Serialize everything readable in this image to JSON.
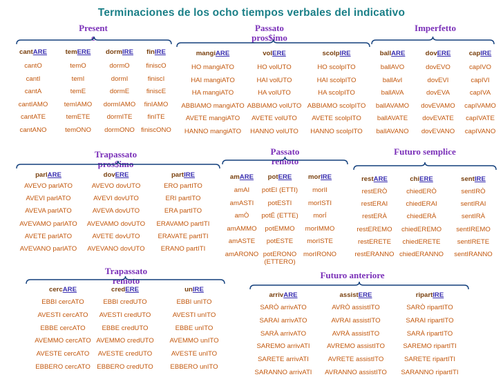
{
  "title": "Terminaciones de los ocho tiempos verbales del indicativo",
  "colors": {
    "title": "#1a7f87",
    "section": "#7a2fb8",
    "text": "#c2570c",
    "ending": "#3a2fb0",
    "brace": "#123f7c"
  },
  "sections": [
    {
      "id": "presente",
      "title": "Present\ne",
      "headers": [
        {
          "stem": "cant",
          "end": "ARE"
        },
        {
          "stem": "tem",
          "end": "ERE"
        },
        {
          "stem": "dorm",
          "end": "IRE"
        },
        {
          "stem": "fin",
          "end": "IRE"
        }
      ],
      "rows": [
        [
          "cantO",
          "temO",
          "dormO",
          "finiscO"
        ],
        [
          "cantI",
          "temI",
          "dormI",
          "finiscI"
        ],
        [
          "cantA",
          "temE",
          "dormE",
          "finiscE"
        ],
        [
          "cantIAMO",
          "temIAMO",
          "dormIAMO",
          "finIAMO"
        ],
        [
          "cantATE",
          "temETE",
          "dormITE",
          "finITE"
        ],
        [
          "cantANO",
          "temONO",
          "dormONO",
          "finiscONO"
        ]
      ]
    },
    {
      "id": "passato-prossimo",
      "title": "Passato\npros$imo",
      "headers": [
        {
          "stem": "mangi",
          "end": "ARE"
        },
        {
          "stem": "vol",
          "end": "ERE"
        },
        {
          "stem": "scolp",
          "end": "IRE"
        }
      ],
      "rows": [
        [
          "HO mangiATO",
          "HO volUTO",
          "HO scolpITO"
        ],
        [
          "HAI mangiATO",
          "HAI volUTO",
          "HAI scolpITO"
        ],
        [
          "HA mangiATO",
          "HA volUTO",
          "HA scolpITO"
        ],
        [
          "ABBIAMO mangiATO",
          "ABBIAMO volUTO",
          "ABBIAMO scolpITO"
        ],
        [
          "AVETE mangiATO",
          "AVETE volUTO",
          "AVETE scolpITO"
        ],
        [
          "HANNO mangiATO",
          "HANNO volUTO",
          "HANNO scolpITO"
        ]
      ]
    },
    {
      "id": "imperfetto",
      "title": "Imperfetto",
      "headers": [
        {
          "stem": "ball",
          "end": "ARE"
        },
        {
          "stem": "dov",
          "end": "ERE"
        },
        {
          "stem": "cap",
          "end": "IRE"
        }
      ],
      "rows": [
        [
          "ballAVO",
          "dovEVO",
          "capIVO"
        ],
        [
          "ballAvI",
          "dovEVI",
          "capIVI"
        ],
        [
          "ballAVA",
          "dovEVA",
          "capIVA"
        ],
        [
          "ballAVAMO",
          "dovEVAMO",
          "capIVAMO"
        ],
        [
          "ballAVATE",
          "dovEVATE",
          "capIVATE"
        ],
        [
          "ballAVANO",
          "dovEVANO",
          "capIVANO"
        ]
      ]
    },
    {
      "id": "trapassato-prossimo",
      "title": "Trapassato\npros$imo",
      "headers": [
        {
          "stem": "parl",
          "end": "ARE"
        },
        {
          "stem": "dov",
          "end": "ERE"
        },
        {
          "stem": "part",
          "end": "IRE"
        }
      ],
      "rows": [
        [
          "AVEVO parlATO",
          "AVEVO dovUTO",
          "ERO partITO"
        ],
        [
          "AVEVI parlATO",
          "AVEVI dovUTO",
          "ERI partITO"
        ],
        [
          "AVEVA parlATO",
          "AVEVA dovUTO",
          "ERA partITO"
        ],
        [
          "AVEVAMO parlATO",
          "AVEVAMO dovUTO",
          "ERAVAMO partITI"
        ],
        [
          "AVETE parlATO",
          "AVETE dovUTO",
          "ERAVATE partITI"
        ],
        [
          "AVEVANO parlATO",
          "AVEVANO dovUTO",
          "ERANO partITI"
        ]
      ]
    },
    {
      "id": "passato-remoto",
      "title": "Passato\nremoto",
      "headers": [
        {
          "stem": "am",
          "end": "ARE"
        },
        {
          "stem": "pot",
          "end": "ERE"
        },
        {
          "stem": "mor",
          "end": "IRE"
        }
      ],
      "rows": [
        [
          "amAI",
          "potEI (ETTI)",
          "morII"
        ],
        [
          "amASTI",
          "potESTI",
          "morISTI"
        ],
        [
          "amÒ",
          "potÉ (ETTE)",
          "morÍ"
        ],
        [
          "amAMMO",
          "potEMMO",
          "morIMMO"
        ],
        [
          "amASTE",
          "potESTE",
          "morISTE"
        ],
        [
          "amARONO",
          "potERONO\n(ETTERO)",
          "morIRONO"
        ]
      ]
    },
    {
      "id": "futuro-semplice",
      "title": "Futuro semplice",
      "headers": [
        {
          "stem": "rest",
          "end": "ARE"
        },
        {
          "stem": "chi",
          "end": "ERE"
        },
        {
          "stem": "sent",
          "end": "IRE"
        }
      ],
      "rows": [
        [
          "restERÒ",
          "chiedERÒ",
          "sentIRÒ"
        ],
        [
          "restERAI",
          "chiedERAI",
          "sentIRAI"
        ],
        [
          "restERÀ",
          "chiedERÀ",
          "sentIRÀ"
        ],
        [
          "restEREMO",
          "chiedEREMO",
          "sentIREMO"
        ],
        [
          "restERETE",
          "chiedERETE",
          "sentIRETE"
        ],
        [
          "restERANNO",
          "chiedERANNO",
          "sentIRANNO"
        ]
      ]
    },
    {
      "id": "trapassato-remoto",
      "title": "Trapassato\nremoto",
      "headers": [
        {
          "stem": "cerc",
          "end": "ARE"
        },
        {
          "stem": "cred",
          "end": "ERE"
        },
        {
          "stem": "un",
          "end": "IRE"
        }
      ],
      "rows": [
        [
          "EBBI cercATO",
          "EBBI credUTO",
          "EBBI unITO"
        ],
        [
          "AVESTI cercATO",
          "AVESTI credUTO",
          "AVESTI unITO"
        ],
        [
          "EBBE cercATO",
          "EBBE credUTO",
          "EBBE unITO"
        ],
        [
          "AVEMMO cercATO",
          "AVEMMO credUTO",
          "AVEMMO unITO"
        ],
        [
          "AVESTE cercATO",
          "AVESTE credUTO",
          "AVESTE unITO"
        ],
        [
          "EBBERO cercATO",
          "EBBERO credUTO",
          "EBBERO unITO"
        ]
      ]
    },
    {
      "id": "futuro-anteriore",
      "title": "Futuro anteriore",
      "headers": [
        {
          "stem": "arriv",
          "end": "ARE"
        },
        {
          "stem": "assist",
          "end": "ERE"
        },
        {
          "stem": "ripart",
          "end": "IRE"
        }
      ],
      "rows": [
        [
          "SARÒ arrivATO",
          "AVRÒ assistITO",
          "SARÒ ripartITO"
        ],
        [
          "SARAI arrivATO",
          "AVRAI assistITO",
          "SARAI ripartITO"
        ],
        [
          "SARÀ arrivATO",
          "AVRÀ assistITO",
          "SARÀ ripartITO"
        ],
        [
          "SAREMO arrivATI",
          "AVREMO assistITO",
          "SAREMO ripartITI"
        ],
        [
          "SARETE arrivATI",
          "AVRETE assistITO",
          "SARETE ripartITI"
        ],
        [
          "SARANNO arrivATI",
          "AVRANNO assistITO",
          "SARANNO ripartITI"
        ]
      ]
    }
  ]
}
